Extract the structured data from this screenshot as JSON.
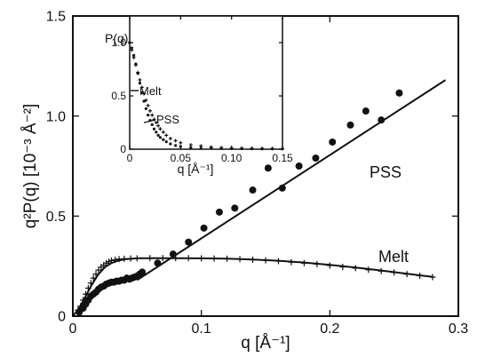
{
  "chart_data": [
    {
      "type": "scatter",
      "xlabel": "q [Å⁻¹]",
      "ylabel": "q²P(q) [10⁻³ Å⁻²]",
      "xlim": [
        0,
        0.3
      ],
      "ylim": [
        0,
        1.5
      ],
      "xticks": [
        "0",
        "0.1",
        "0.2",
        "0.3"
      ],
      "yticks": [
        "0",
        "0.5",
        "1.0",
        "1.5"
      ],
      "grid": false,
      "series": [
        {
          "name": "PSS",
          "mode": "markers",
          "marker": "filled-circle",
          "x": [
            0.005,
            0.008,
            0.01,
            0.012,
            0.014,
            0.016,
            0.018,
            0.02,
            0.022,
            0.024,
            0.026,
            0.028,
            0.03,
            0.032,
            0.034,
            0.036,
            0.038,
            0.04,
            0.042,
            0.044,
            0.046,
            0.048,
            0.05,
            0.052,
            0.054,
            0.066,
            0.078,
            0.09,
            0.102,
            0.114,
            0.126,
            0.14,
            0.152,
            0.163,
            0.176,
            0.189,
            0.202,
            0.216,
            0.228,
            0.24,
            0.254
          ],
          "y": [
            0.02,
            0.04,
            0.06,
            0.08,
            0.1,
            0.11,
            0.12,
            0.135,
            0.145,
            0.15,
            0.16,
            0.165,
            0.17,
            0.17,
            0.175,
            0.175,
            0.18,
            0.18,
            0.19,
            0.185,
            0.19,
            0.195,
            0.2,
            0.21,
            0.22,
            0.265,
            0.31,
            0.37,
            0.44,
            0.52,
            0.54,
            0.63,
            0.74,
            0.64,
            0.75,
            0.79,
            0.87,
            0.955,
            1.025,
            0.98,
            1.115
          ]
        },
        {
          "name": "PSS",
          "mode": "line",
          "x": [
            0.05,
            0.29
          ],
          "y": [
            0.18,
            1.18
          ]
        },
        {
          "name": "Melt",
          "mode": "markers",
          "marker": "plus",
          "x": [
            0.004,
            0.006,
            0.008,
            0.01,
            0.012,
            0.014,
            0.016,
            0.018,
            0.02,
            0.022,
            0.024,
            0.026,
            0.028,
            0.03,
            0.033,
            0.036,
            0.04,
            0.045,
            0.05,
            0.06,
            0.07,
            0.08,
            0.09,
            0.1,
            0.11,
            0.12,
            0.13,
            0.14,
            0.15,
            0.16,
            0.17,
            0.18,
            0.19,
            0.2,
            0.21,
            0.22,
            0.23,
            0.24,
            0.25,
            0.26,
            0.27,
            0.28
          ],
          "y": [
            0.03,
            0.05,
            0.08,
            0.11,
            0.14,
            0.165,
            0.19,
            0.21,
            0.23,
            0.245,
            0.255,
            0.265,
            0.272,
            0.278,
            0.282,
            0.285,
            0.287,
            0.288,
            0.289,
            0.29,
            0.29,
            0.29,
            0.29,
            0.289,
            0.288,
            0.287,
            0.285,
            0.282,
            0.279,
            0.275,
            0.27,
            0.265,
            0.26,
            0.253,
            0.246,
            0.24,
            0.232,
            0.225,
            0.218,
            0.21,
            0.202,
            0.195
          ]
        },
        {
          "name": "Melt",
          "mode": "line",
          "x": [
            0.0,
            0.005,
            0.01,
            0.015,
            0.02,
            0.025,
            0.03,
            0.035,
            0.04,
            0.05,
            0.06,
            0.08,
            0.1,
            0.12,
            0.14,
            0.16,
            0.18,
            0.2,
            0.22,
            0.24,
            0.26,
            0.28
          ],
          "y": [
            0.0,
            0.04,
            0.1,
            0.16,
            0.21,
            0.245,
            0.265,
            0.277,
            0.284,
            0.289,
            0.29,
            0.29,
            0.289,
            0.287,
            0.283,
            0.277,
            0.268,
            0.256,
            0.243,
            0.228,
            0.212,
            0.196
          ]
        }
      ],
      "annotations": [
        "PSS",
        "Melt"
      ]
    },
    {
      "type": "scatter",
      "inset": true,
      "xlabel": "q [Å⁻¹]",
      "ylabel": "P(q)",
      "xlim": [
        0,
        0.15
      ],
      "ylim": [
        0,
        1.25
      ],
      "xticks": [
        "0",
        "0.05",
        "0.10",
        "0.15"
      ],
      "yticks": [
        "0",
        "0.5",
        "1.0"
      ],
      "series": [
        {
          "name": "Melt",
          "mode": "markers",
          "marker": "plus",
          "x": [
            0.0,
            0.002,
            0.004,
            0.006,
            0.008,
            0.01,
            0.012,
            0.014,
            0.016,
            0.018,
            0.02,
            0.022,
            0.024,
            0.026,
            0.028,
            0.03,
            0.033,
            0.036,
            0.04,
            0.045,
            0.05,
            0.06,
            0.07,
            0.08,
            0.09,
            0.1,
            0.11,
            0.12,
            0.13,
            0.14,
            0.15
          ],
          "y": [
            1.0,
            0.93,
            0.86,
            0.79,
            0.72,
            0.65,
            0.58,
            0.52,
            0.46,
            0.41,
            0.36,
            0.32,
            0.28,
            0.25,
            0.22,
            0.19,
            0.16,
            0.13,
            0.1,
            0.08,
            0.06,
            0.04,
            0.03,
            0.02,
            0.015,
            0.012,
            0.01,
            0.008,
            0.007,
            0.006,
            0.005
          ]
        },
        {
          "name": "PSS",
          "mode": "markers",
          "marker": "filled-circle",
          "x": [
            0.0,
            0.002,
            0.004,
            0.006,
            0.008,
            0.01,
            0.012,
            0.014,
            0.016,
            0.018,
            0.02,
            0.022,
            0.024,
            0.026,
            0.028,
            0.03,
            0.033,
            0.036,
            0.04,
            0.045,
            0.05,
            0.06,
            0.07,
            0.08,
            0.09,
            0.1,
            0.11,
            0.12,
            0.13,
            0.14,
            0.15
          ],
          "y": [
            1.0,
            0.95,
            0.88,
            0.8,
            0.71,
            0.62,
            0.53,
            0.45,
            0.38,
            0.32,
            0.27,
            0.23,
            0.19,
            0.16,
            0.13,
            0.11,
            0.09,
            0.07,
            0.05,
            0.035,
            0.025,
            0.015,
            0.01,
            0.008,
            0.006,
            0.005,
            0.004,
            0.004,
            0.003,
            0.003,
            0.003
          ]
        }
      ],
      "annotations": [
        "Melt",
        "PSS"
      ]
    }
  ]
}
